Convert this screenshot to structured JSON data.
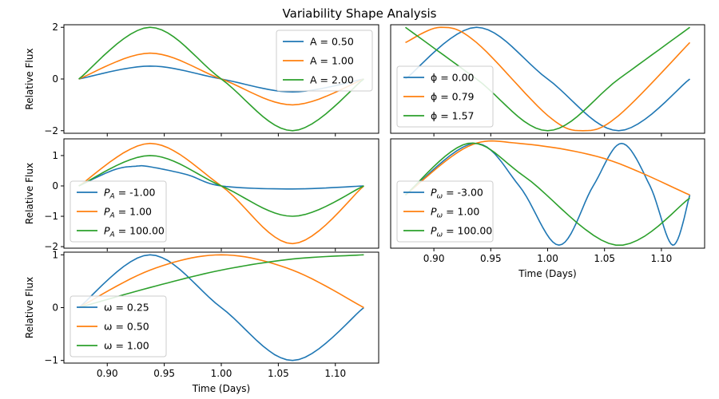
{
  "figure": {
    "title": "Variability Shape Analysis"
  },
  "colors": {
    "c0": "#1f77b4",
    "c1": "#ff7f0e",
    "c2": "#2ca02c"
  },
  "chart_data": [
    {
      "type": "line",
      "panel": "amplitude",
      "ylabel": "Relative Flux",
      "xlabel": "",
      "xlim": [
        0.862,
        1.138
      ],
      "ylim": [
        -2.1,
        2.1
      ],
      "yticks": [
        "2",
        "0",
        "−2"
      ],
      "ytick_values": [
        2,
        0,
        -2
      ],
      "xticks": [],
      "legend": "upper-right",
      "series": [
        {
          "name": "A = 0.50",
          "values": [
            [
              0.875,
              0.0
            ],
            [
              0.9375,
              0.5
            ],
            [
              1.0,
              0.0
            ],
            [
              1.0625,
              -0.5
            ],
            [
              1.125,
              0.0
            ]
          ]
        },
        {
          "name": "A = 1.00",
          "values": [
            [
              0.875,
              0.0
            ],
            [
              0.9375,
              1.0
            ],
            [
              1.0,
              0.0
            ],
            [
              1.0625,
              -1.0
            ],
            [
              1.125,
              0.0
            ]
          ]
        },
        {
          "name": "A = 2.00",
          "values": [
            [
              0.875,
              0.0
            ],
            [
              0.9375,
              2.0
            ],
            [
              1.0,
              0.0
            ],
            [
              1.0625,
              -2.0
            ],
            [
              1.125,
              0.0
            ]
          ]
        }
      ]
    },
    {
      "type": "line",
      "panel": "phase",
      "ylabel": "",
      "xlabel": "",
      "xlim": [
        0.862,
        1.138
      ],
      "ylim": [
        -2.1,
        2.1
      ],
      "yticks": [],
      "xticks": [],
      "legend": "lower-left",
      "series": [
        {
          "name": "ϕ = 0.00",
          "values": [
            [
              0.875,
              0.0
            ],
            [
              0.9375,
              2.0
            ],
            [
              1.0,
              0.0
            ],
            [
              1.0625,
              -2.0
            ],
            [
              1.125,
              0.0
            ]
          ]
        },
        {
          "name": "ϕ = 0.79",
          "values": [
            [
              0.875,
              1.41
            ],
            [
              0.906,
              2.0
            ],
            [
              0.9375,
              1.41
            ],
            [
              1.0,
              -1.41
            ],
            [
              1.031,
              -2.0
            ],
            [
              1.0625,
              -1.41
            ],
            [
              1.125,
              1.41
            ]
          ]
        },
        {
          "name": "ϕ = 1.57",
          "values": [
            [
              0.875,
              2.0
            ],
            [
              0.9375,
              0.0
            ],
            [
              1.0,
              -2.0
            ],
            [
              1.0625,
              0.0
            ],
            [
              1.125,
              2.0
            ]
          ]
        }
      ]
    },
    {
      "type": "line",
      "panel": "period-asymmetry",
      "ylabel": "Relative Flux",
      "xlabel": "",
      "xlim": [
        0.862,
        1.138
      ],
      "ylim": [
        -2.05,
        1.55
      ],
      "yticks": [
        "1",
        "0",
        "−1",
        "−2"
      ],
      "ytick_values": [
        1,
        0,
        -1,
        -2
      ],
      "xticks": [],
      "legend": "lower-left",
      "series": [
        {
          "name": "P_A = -1.00",
          "values": [
            [
              0.875,
              0.0
            ],
            [
              0.906,
              0.53
            ],
            [
              0.925,
              0.65
            ],
            [
              0.9375,
              0.63
            ],
            [
              0.97,
              0.37
            ],
            [
              1.0,
              0.0
            ],
            [
              1.0625,
              -0.1
            ],
            [
              1.125,
              0.0
            ]
          ]
        },
        {
          "name": "P_A = 1.00",
          "values": [
            [
              0.875,
              0.0
            ],
            [
              0.9375,
              1.4
            ],
            [
              1.0,
              0.0
            ],
            [
              1.0625,
              -1.9
            ],
            [
              1.125,
              0.0
            ]
          ]
        },
        {
          "name": "P_A = 100.00",
          "values": [
            [
              0.875,
              0.0
            ],
            [
              0.9375,
              1.0
            ],
            [
              1.0,
              0.0
            ],
            [
              1.0625,
              -1.0
            ],
            [
              1.125,
              0.0
            ]
          ]
        }
      ]
    },
    {
      "type": "line",
      "panel": "period-modulation",
      "ylabel": "",
      "xlabel": "Time (Days)",
      "xlim": [
        0.862,
        1.138
      ],
      "ylim": [
        -2.05,
        1.55
      ],
      "yticks": [],
      "xticks": [
        "0.90",
        "0.95",
        "1.00",
        "1.05",
        "1.10"
      ],
      "xtick_values": [
        0.9,
        0.95,
        1.0,
        1.05,
        1.1
      ],
      "legend": "lower-left",
      "series": [
        {
          "name": "P_ω = -3.00",
          "values": [
            [
              0.875,
              -0.3
            ],
            [
              0.935,
              1.4
            ],
            [
              0.975,
              0.0
            ],
            [
              1.01,
              -1.95
            ],
            [
              1.04,
              0.0
            ],
            [
              1.065,
              1.4
            ],
            [
              1.09,
              0.0
            ],
            [
              1.11,
              -1.95
            ],
            [
              1.125,
              -0.3
            ]
          ]
        },
        {
          "name": "P_ω = 1.00",
          "values": [
            [
              0.875,
              -0.3
            ],
            [
              0.93,
              1.3
            ],
            [
              0.975,
              1.4
            ],
            [
              1.05,
              0.9
            ],
            [
              1.125,
              -0.3
            ]
          ]
        },
        {
          "name": "P_ω = 100.00",
          "values": [
            [
              0.875,
              -0.3
            ],
            [
              0.93,
              1.4
            ],
            [
              0.98,
              0.3
            ],
            [
              1.06,
              -1.95
            ],
            [
              1.125,
              -0.4
            ]
          ]
        }
      ]
    },
    {
      "type": "line",
      "panel": "frequency",
      "ylabel": "Relative Flux",
      "xlabel": "Time (Days)",
      "xlim": [
        0.862,
        1.138
      ],
      "ylim": [
        -1.05,
        1.05
      ],
      "yticks": [
        "1",
        "0",
        "−1"
      ],
      "ytick_values": [
        1,
        0,
        -1
      ],
      "xticks": [
        "0.90",
        "0.95",
        "1.00",
        "1.05",
        "1.10"
      ],
      "xtick_values": [
        0.9,
        0.95,
        1.0,
        1.05,
        1.1
      ],
      "legend": "lower-left",
      "series": [
        {
          "name": "ω = 0.25",
          "values": [
            [
              0.875,
              0.0
            ],
            [
              0.9375,
              1.0
            ],
            [
              1.0,
              0.0
            ],
            [
              1.0625,
              -1.0
            ],
            [
              1.125,
              0.0
            ]
          ]
        },
        {
          "name": "ω = 0.50",
          "values": [
            [
              0.875,
              0.0
            ],
            [
              0.9375,
              0.71
            ],
            [
              1.0,
              1.0
            ],
            [
              1.0625,
              0.71
            ],
            [
              1.125,
              0.0
            ]
          ]
        },
        {
          "name": "ω = 1.00",
          "values": [
            [
              0.875,
              0.0
            ],
            [
              0.9375,
              0.38
            ],
            [
              1.0,
              0.71
            ],
            [
              1.0625,
              0.92
            ],
            [
              1.125,
              1.0
            ]
          ]
        }
      ]
    }
  ]
}
